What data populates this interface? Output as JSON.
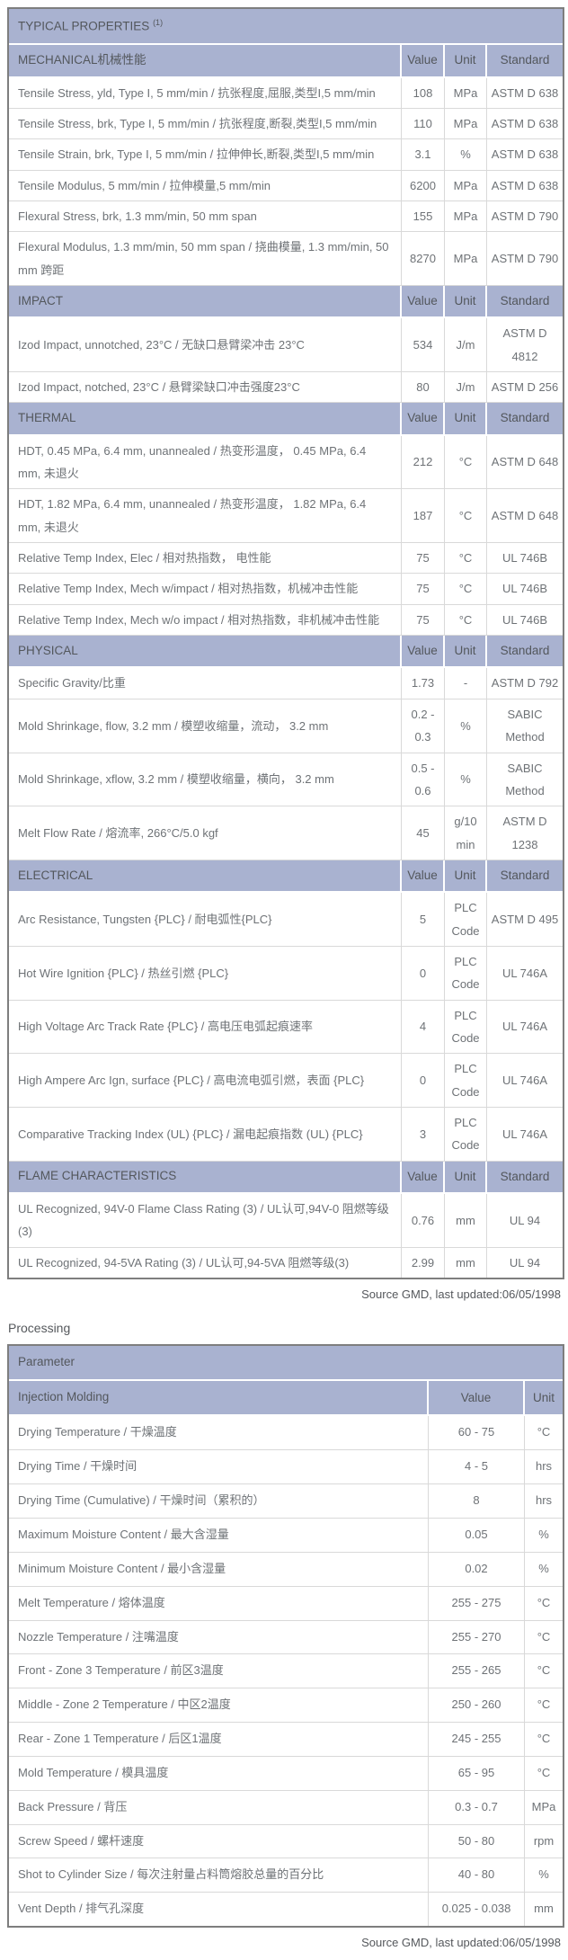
{
  "colors": {
    "band_background": "#a9b2d0",
    "band_text": "#53575c",
    "body_text": "#6e7276",
    "outer_border": "#7e7e7e",
    "inner_border": "#d9d9d9"
  },
  "typical_properties": {
    "title": "TYPICAL PROPERTIES",
    "superscript": "(1)",
    "columns": [
      "Value",
      "Unit",
      "Standard"
    ],
    "sections": [
      {
        "name": "MECHANICAL机械性能",
        "rows": [
          {
            "property": "Tensile Stress, yld, Type I, 5 mm/min / 抗张程度,屈服,类型I,5 mm/min",
            "value": "108",
            "unit": "MPa",
            "standard": "ASTM D 638"
          },
          {
            "property": "Tensile Stress, brk, Type I, 5 mm/min / 抗张程度,断裂,类型I,5 mm/min",
            "value": "110",
            "unit": "MPa",
            "standard": "ASTM D 638"
          },
          {
            "property": "Tensile Strain, brk, Type I, 5 mm/min / 拉伸伸长,断裂,类型I,5 mm/min",
            "value": "3.1",
            "unit": "%",
            "standard": "ASTM D 638"
          },
          {
            "property": "Tensile Modulus, 5 mm/min / 拉伸模量,5 mm/min",
            "value": "6200",
            "unit": "MPa",
            "standard": "ASTM D 638"
          },
          {
            "property": "Flexural Stress, brk, 1.3 mm/min, 50 mm span",
            "value": "155",
            "unit": "MPa",
            "standard": "ASTM D 790"
          },
          {
            "property": "Flexural Modulus, 1.3 mm/min, 50 mm span / 挠曲模量, 1.3 mm/min, 50 mm 跨距",
            "value": "8270",
            "unit": "MPa",
            "standard": "ASTM D 790"
          }
        ]
      },
      {
        "name": "IMPACT",
        "rows": [
          {
            "property": "Izod Impact, unnotched, 23°C / 无缺口悬臂梁冲击 23°C",
            "value": "534",
            "unit": "J/m",
            "standard": "ASTM D 4812"
          },
          {
            "property": "Izod Impact, notched, 23°C / 悬臂梁缺口冲击强度23°C",
            "value": "80",
            "unit": "J/m",
            "standard": "ASTM D 256"
          }
        ]
      },
      {
        "name": "THERMAL",
        "rows": [
          {
            "property": "HDT, 0.45 MPa, 6.4 mm, unannealed / 热变形温度， 0.45 MPa, 6.4 mm, 未退火",
            "value": "212",
            "unit": "°C",
            "standard": "ASTM D 648"
          },
          {
            "property": "HDT, 1.82 MPa, 6.4 mm, unannealed / 热变形温度， 1.82 MPa, 6.4 mm, 未退火",
            "value": "187",
            "unit": "°C",
            "standard": "ASTM D 648"
          },
          {
            "property": "Relative Temp Index, Elec / 相对热指数， 电性能",
            "value": "75",
            "unit": "°C",
            "standard": "UL 746B"
          },
          {
            "property": "Relative Temp Index, Mech w/impact / 相对热指数，机械冲击性能",
            "value": "75",
            "unit": "°C",
            "standard": "UL 746B"
          },
          {
            "property": "Relative Temp Index, Mech w/o impact / 相对热指数，非机械冲击性能",
            "value": "75",
            "unit": "°C",
            "standard": "UL 746B"
          }
        ]
      },
      {
        "name": "PHYSICAL",
        "rows": [
          {
            "property": "Specific Gravity/比重",
            "value": "1.73",
            "unit": "-",
            "standard": "ASTM D 792"
          },
          {
            "property": "Mold Shrinkage, flow, 3.2 mm / 模塑收缩量，流动， 3.2 mm",
            "value": "0.2 - 0.3",
            "unit": "%",
            "standard": "SABIC Method"
          },
          {
            "property": "Mold Shrinkage, xflow, 3.2 mm / 模塑收缩量，横向， 3.2 mm",
            "value": "0.5 - 0.6",
            "unit": "%",
            "standard": "SABIC Method"
          },
          {
            "property": "Melt Flow Rate / 熔流率, 266°C/5.0 kgf",
            "value": "45",
            "unit": "g/10 min",
            "standard": "ASTM D 1238"
          }
        ]
      },
      {
        "name": "ELECTRICAL",
        "rows": [
          {
            "property": "Arc Resistance, Tungsten {PLC} / 耐电弧性{PLC}",
            "value": "5",
            "unit": "PLC Code",
            "standard": "ASTM D 495"
          },
          {
            "property": "Hot Wire Ignition {PLC} / 热丝引燃 {PLC}",
            "value": "0",
            "unit": "PLC Code",
            "standard": "UL 746A"
          },
          {
            "property": "High Voltage Arc Track Rate {PLC} / 高电压电弧起痕速率",
            "value": "4",
            "unit": "PLC Code",
            "standard": "UL 746A"
          },
          {
            "property": "High Ampere Arc Ign, surface {PLC} / 高电流电弧引燃，表面 {PLC}",
            "value": "0",
            "unit": "PLC Code",
            "standard": "UL 746A"
          },
          {
            "property": "Comparative Tracking Index (UL) {PLC} / 漏电起痕指数 (UL) {PLC}",
            "value": "3",
            "unit": "PLC Code",
            "standard": "UL 746A"
          }
        ]
      },
      {
        "name": "FLAME CHARACTERISTICS",
        "rows": [
          {
            "property": "UL Recognized, 94V-0 Flame Class Rating (3) / UL认可,94V-0 阻燃等级(3)",
            "value": "0.76",
            "unit": "mm",
            "standard": "UL 94"
          },
          {
            "property": "UL Recognized, 94-5VA Rating (3) / UL认可,94-5VA 阻燃等级(3)",
            "value": "2.99",
            "unit": "mm",
            "standard": "UL 94"
          }
        ]
      }
    ],
    "source": "Source GMD, last updated:06/05/1998"
  },
  "processing": {
    "label": "Processing",
    "header": "Parameter",
    "subheader": "Injection Molding",
    "columns": [
      "Value",
      "Unit"
    ],
    "rows": [
      {
        "parameter": "Drying Temperature / 干燥温度",
        "value": "60 - 75",
        "unit": "°C"
      },
      {
        "parameter": "Drying Time / 干燥时间",
        "value": "4 - 5",
        "unit": "hrs"
      },
      {
        "parameter": "Drying Time (Cumulative) / 干燥时间（累积的）",
        "value": "8",
        "unit": "hrs"
      },
      {
        "parameter": "Maximum Moisture Content / 最大含湿量",
        "value": "0.05",
        "unit": "%"
      },
      {
        "parameter": "Minimum Moisture Content / 最小含湿量",
        "value": "0.02",
        "unit": "%"
      },
      {
        "parameter": "Melt Temperature / 熔体温度",
        "value": "255 - 275",
        "unit": "°C"
      },
      {
        "parameter": "Nozzle Temperature / 注嘴温度",
        "value": "255 - 270",
        "unit": "°C"
      },
      {
        "parameter": "Front - Zone 3 Temperature / 前区3温度",
        "value": "255 - 265",
        "unit": "°C"
      },
      {
        "parameter": "Middle - Zone 2 Temperature / 中区2温度",
        "value": "250 - 260",
        "unit": "°C"
      },
      {
        "parameter": "Rear - Zone 1 Temperature / 后区1温度",
        "value": "245 - 255",
        "unit": "°C"
      },
      {
        "parameter": "Mold Temperature / 模具温度",
        "value": "65 - 95",
        "unit": "°C"
      },
      {
        "parameter": "Back Pressure / 背压",
        "value": "0.3 - 0.7",
        "unit": "MPa"
      },
      {
        "parameter": "Screw Speed / 螺杆速度",
        "value": "50 - 80",
        "unit": "rpm"
      },
      {
        "parameter": "Shot to Cylinder Size / 每次注射量占料筒熔胶总量的百分比",
        "value": "40 - 80",
        "unit": "%"
      },
      {
        "parameter": "Vent Depth / 排气孔深度",
        "value": "0.025 - 0.038",
        "unit": "mm"
      }
    ],
    "source": "Source GMD, last updated:06/05/1998"
  }
}
